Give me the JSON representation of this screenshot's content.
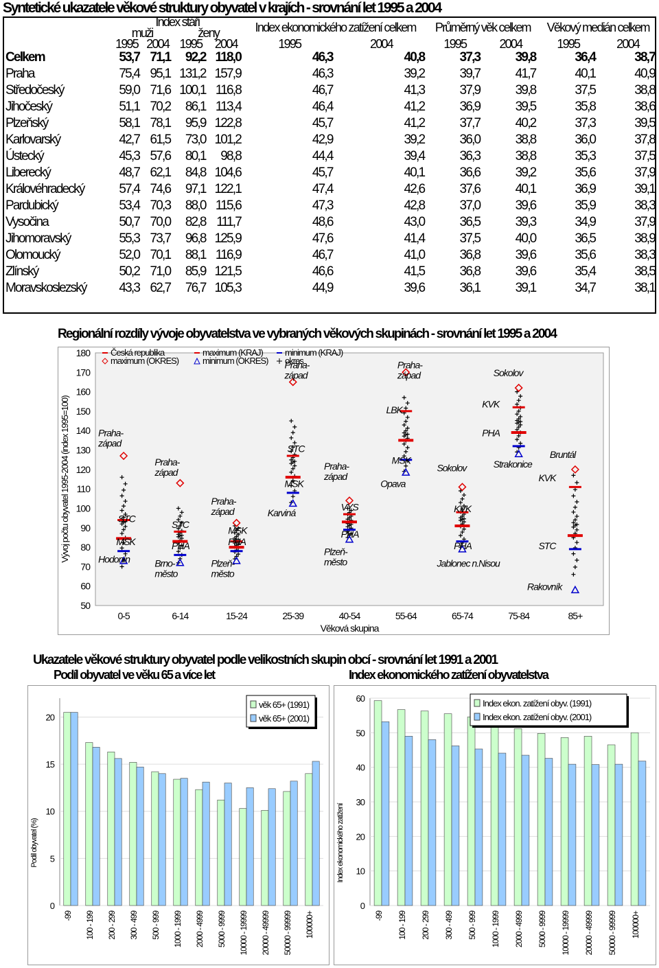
{
  "title1": "Syntetické ukazatele věkové struktury obyvatel v krajích - srovnání let 1995 a 2004",
  "table": {
    "group_headers": [
      "Index stáří",
      "Index ekonomického zatížení celkem",
      "Průměrný věk celkem",
      "Věkový medián celkem"
    ],
    "sub_headers": [
      "muži",
      "ženy"
    ],
    "years": [
      "1995",
      "2004",
      "1995",
      "2004",
      "1995",
      "2004",
      "1995",
      "2004",
      "1995",
      "2004"
    ],
    "rows": [
      {
        "name": "Celkem",
        "values": [
          "53,7",
          "71,1",
          "92,2",
          "118,0",
          "46,3",
          "40,8",
          "37,3",
          "39,8",
          "36,4",
          "38,7"
        ]
      },
      {
        "name": "Praha",
        "values": [
          "75,4",
          "95,1",
          "131,2",
          "157,9",
          "46,3",
          "39,2",
          "39,7",
          "41,7",
          "40,1",
          "40,9"
        ]
      },
      {
        "name": "Středočeský",
        "values": [
          "59,0",
          "71,6",
          "100,1",
          "116,8",
          "46,7",
          "41,3",
          "37,9",
          "39,8",
          "37,5",
          "38,8"
        ]
      },
      {
        "name": "Jihočeský",
        "values": [
          "51,1",
          "70,2",
          "86,1",
          "113,4",
          "46,4",
          "41,2",
          "36,9",
          "39,5",
          "35,8",
          "38,6"
        ]
      },
      {
        "name": "Plzeňský",
        "values": [
          "58,1",
          "78,1",
          "95,9",
          "122,8",
          "45,7",
          "41,2",
          "37,7",
          "40,2",
          "37,3",
          "39,5"
        ]
      },
      {
        "name": "Karlovarský",
        "values": [
          "42,7",
          "61,5",
          "73,0",
          "101,2",
          "42,9",
          "39,2",
          "36,0",
          "38,8",
          "36,0",
          "37,8"
        ]
      },
      {
        "name": "Ústecký",
        "values": [
          "45,3",
          "57,6",
          "80,1",
          "98,8",
          "44,4",
          "39,4",
          "36,3",
          "38,8",
          "35,3",
          "37,5"
        ]
      },
      {
        "name": "Liberecký",
        "values": [
          "48,7",
          "62,1",
          "84,8",
          "104,6",
          "45,7",
          "40,1",
          "36,6",
          "39,2",
          "35,6",
          "37,9"
        ]
      },
      {
        "name": "Královéhradecký",
        "values": [
          "57,4",
          "74,6",
          "97,1",
          "122,1",
          "47,4",
          "42,6",
          "37,6",
          "40,1",
          "36,9",
          "39,1"
        ]
      },
      {
        "name": "Pardubický",
        "values": [
          "53,4",
          "70,3",
          "88,0",
          "115,6",
          "47,3",
          "42,8",
          "37,0",
          "39,6",
          "35,9",
          "38,3"
        ]
      },
      {
        "name": "Vysočina",
        "values": [
          "50,7",
          "70,0",
          "82,8",
          "111,7",
          "48,6",
          "43,0",
          "36,5",
          "39,3",
          "34,9",
          "37,9"
        ]
      },
      {
        "name": "Jihomoravský",
        "values": [
          "55,3",
          "73,7",
          "96,8",
          "125,9",
          "47,6",
          "41,4",
          "37,5",
          "40,0",
          "36,5",
          "38,9"
        ]
      },
      {
        "name": "Olomoucký",
        "values": [
          "52,0",
          "70,1",
          "88,1",
          "116,9",
          "46,7",
          "41,0",
          "36,8",
          "39,6",
          "35,6",
          "38,3"
        ]
      },
      {
        "name": "Zlínský",
        "values": [
          "50,2",
          "71,0",
          "85,9",
          "121,5",
          "46,6",
          "41,5",
          "36,8",
          "39,6",
          "35,4",
          "38,5"
        ]
      },
      {
        "name": "Moravskoslezský",
        "values": [
          "43,3",
          "62,7",
          "76,7",
          "105,3",
          "44,9",
          "39,6",
          "36,1",
          "39,1",
          "34,7",
          "38,1"
        ]
      }
    ]
  },
  "title2": "Regionální rozdíly vývoje obyvatelstva ve vybraných věkových skupinách - srovnání let 1995 a 2004",
  "title3": "Ukazatele věkové struktury obyvatel podle velikostních skupin obcí - srovnání let 1991 a 2001",
  "title4a": "Podíl obyvatel ve věku 65 a více let",
  "title4b": "Index ekonomického zatížení obyvatelstva",
  "colors": {
    "red": "#e00000",
    "blue": "#0000cc",
    "green_bar": "#ccffcc",
    "blue_bar": "#99ccff",
    "plot_bg": "#f2f2f2"
  },
  "chart_data": [
    {
      "type": "scatter",
      "ylabel": "Vývoj počtu obyvatel 1995-2004 (index 1995=100)",
      "xlabel": "Věková skupina",
      "ylim": [
        50,
        180
      ],
      "yticks": [
        50,
        60,
        70,
        80,
        90,
        100,
        110,
        120,
        130,
        140,
        150,
        160,
        170,
        180
      ],
      "categories": [
        "0-5",
        "6-14",
        "15-24",
        "25-39",
        "40-54",
        "55-64",
        "65-74",
        "75-84",
        "85+"
      ],
      "legend": [
        "Česká republika",
        "maximum (KRAJ)",
        "minimum (KRAJ)",
        "maximum (OKRES)",
        "minimum (OKRES)",
        "okres"
      ],
      "series": [
        {
          "name": "Česká republika",
          "values": [
            84.5,
            83,
            80,
            116,
            93,
            135,
            91,
            139,
            86
          ]
        },
        {
          "name": "maximum (KRAJ)",
          "values": [
            94,
            88,
            83,
            127,
            97,
            150,
            98,
            152,
            111
          ]
        },
        {
          "name": "minimum (KRAJ)",
          "values": [
            78,
            76,
            78,
            108,
            89,
            125,
            83,
            132,
            79
          ]
        },
        {
          "name": "maximum (OKRES)",
          "values": [
            127,
            113,
            92.5,
            165,
            104,
            170,
            111,
            162,
            120
          ]
        },
        {
          "name": "minimum (OKRES)",
          "values": [
            73,
            72,
            73,
            102.5,
            84,
            118.5,
            79,
            128,
            58
          ]
        }
      ],
      "okres_spread": [
        [
          70,
          116
        ],
        [
          72,
          100
        ],
        [
          74,
          91
        ],
        [
          103,
          145
        ],
        [
          85,
          100
        ],
        [
          119,
          157
        ],
        [
          80,
          109
        ],
        [
          129,
          160
        ],
        [
          66,
          117
        ]
      ],
      "annotations": [
        {
          "text": "Praha-západ",
          "x": 0,
          "y": 137
        },
        {
          "text": "STC",
          "x": 0.35,
          "y": 93
        },
        {
          "text": "MSK",
          "x": 0.32,
          "y": 81
        },
        {
          "text": "Hodonín",
          "x": 0.0,
          "y": 72
        },
        {
          "text": "Praha-západ",
          "x": 1,
          "y": 122
        },
        {
          "text": "STC",
          "x": 1.3,
          "y": 90
        },
        {
          "text": "PHA",
          "x": 1.3,
          "y": 79
        },
        {
          "text": "Brno-město",
          "x": 1,
          "y": 70
        },
        {
          "text": "Praha-západ",
          "x": 2,
          "y": 102
        },
        {
          "text": "MSK",
          "x": 2.3,
          "y": 87
        },
        {
          "text": "PHA",
          "x": 2.3,
          "y": 81
        },
        {
          "text": "Plzeň-město",
          "x": 2,
          "y": 70
        },
        {
          "text": "Praha-západ",
          "x": 3.3,
          "y": 172
        },
        {
          "text": "STC",
          "x": 3.35,
          "y": 129
        },
        {
          "text": "MSK",
          "x": 3.3,
          "y": 111
        },
        {
          "text": "Karviná",
          "x": 3,
          "y": 96
        },
        {
          "text": "Praha-západ",
          "x": 4,
          "y": 120
        },
        {
          "text": "VYS",
          "x": 4.3,
          "y": 99
        },
        {
          "text": "PHA",
          "x": 4.3,
          "y": 85
        },
        {
          "text": "Plzeň-město",
          "x": 4,
          "y": 76
        },
        {
          "text": "Praha-západ",
          "x": 5.3,
          "y": 172
        },
        {
          "text": "LBK",
          "x": 5.1,
          "y": 149
        },
        {
          "text": "MSK",
          "x": 5.2,
          "y": 123
        },
        {
          "text": "Opava",
          "x": 5.0,
          "y": 111
        },
        {
          "text": "Sokolov",
          "x": 6.0,
          "y": 119
        },
        {
          "text": "KVK",
          "x": 6.3,
          "y": 98
        },
        {
          "text": "PHA",
          "x": 6.3,
          "y": 79
        },
        {
          "text": "Jablonec n.Nisou",
          "x": 6,
          "y": 70
        },
        {
          "text": "Sokolov",
          "x": 7.0,
          "y": 168
        },
        {
          "text": "KVK",
          "x": 6.8,
          "y": 152
        },
        {
          "text": "PHA",
          "x": 6.8,
          "y": 137
        },
        {
          "text": "Strakonice",
          "x": 7.0,
          "y": 121
        },
        {
          "text": "Bruntál",
          "x": 8.0,
          "y": 126
        },
        {
          "text": "KVK",
          "x": 7.8,
          "y": 114
        },
        {
          "text": "STC",
          "x": 7.8,
          "y": 79
        },
        {
          "text": "Rakovník",
          "x": 7.6,
          "y": 58
        }
      ]
    },
    {
      "type": "bar",
      "ylabel": "Podíl obyvatel (%)",
      "ylim": [
        0,
        22
      ],
      "yticks": [
        0,
        5,
        10,
        15,
        20
      ],
      "categories": [
        "-99",
        "100 - 199",
        "200 - 299",
        "300 - 499",
        "500 - 999",
        "1000 - 1999",
        "2000 - 4999",
        "5000 - 9999",
        "10000 - 19999",
        "20000 - 49999",
        "50000 - 99999",
        "100000+"
      ],
      "series": [
        {
          "name": "věk 65+ (1991)",
          "values": [
            20.5,
            17.3,
            16.3,
            15.2,
            14.2,
            13.4,
            12.3,
            11.2,
            10.3,
            10.1,
            12.1,
            14.0
          ]
        },
        {
          "name": "věk 65+ (2001)",
          "values": [
            20.5,
            16.8,
            15.6,
            14.7,
            14.0,
            13.5,
            13.1,
            13.0,
            12.5,
            12.4,
            13.2,
            15.3
          ]
        }
      ]
    },
    {
      "type": "bar",
      "ylabel": "Index ekonomického zatížení",
      "ylim": [
        0,
        60
      ],
      "yticks": [
        0,
        10,
        20,
        30,
        40,
        50,
        60
      ],
      "categories": [
        "-99",
        "100 - 199",
        "200 - 299",
        "300 - 499",
        "500 - 999",
        "1000 - 1999",
        "2000 - 4999",
        "5000 - 9999",
        "10000 - 19999",
        "20000 - 49999",
        "50000 - 99999",
        "100000+"
      ],
      "series": [
        {
          "name": "Index ekon. zatížení obyv. (1991)",
          "values": [
            59.3,
            56.7,
            56.3,
            55.5,
            54.6,
            53.4,
            51.2,
            49.8,
            48.6,
            49.0,
            46.5,
            50.0
          ]
        },
        {
          "name": "Index ekon. zatížení obyv. (2001)",
          "values": [
            53.2,
            49.0,
            48.0,
            46.2,
            45.3,
            44.1,
            43.5,
            42.6,
            40.9,
            40.8,
            40.9,
            41.8
          ]
        }
      ]
    }
  ]
}
